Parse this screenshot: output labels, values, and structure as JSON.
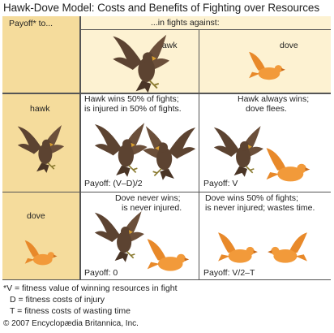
{
  "title": "Hawk-Dove Model: Costs and Benefits of Fighting over Resources",
  "header": {
    "row_header": "Payoff* to...",
    "col_header": "...in fights against:",
    "col_hawk": "hawk",
    "col_dove": "dove"
  },
  "rows": [
    {
      "label": "hawk",
      "cells": [
        {
          "desc": [
            "Hawk wins 50% of fights;",
            "is injured in 50% of fights."
          ],
          "payoff": "Payoff: (V–D)/2"
        },
        {
          "desc": [
            "Hawk always wins;",
            "dove flees."
          ],
          "payoff": "Payoff: V"
        }
      ]
    },
    {
      "label": "dove",
      "cells": [
        {
          "desc": [
            "Dove never wins;",
            "is never injured."
          ],
          "payoff": "Payoff: 0"
        },
        {
          "desc": [
            "Dove wins 50% of fights;",
            "is never injured; wastes time."
          ],
          "payoff": "Payoff: V/2–T"
        }
      ]
    }
  ],
  "footnotes": [
    "*V = fitness value of winning resources in fight",
    "D = fitness costs of injury",
    "T = fitness costs of wasting time"
  ],
  "copyright": "© 2007 Encyclopædia Britannica, Inc.",
  "colors": {
    "hawk": "#5c4331",
    "dove": "#f29a3a",
    "header_bg": "#f5dc9c",
    "cell_bg": "#fdf2d2"
  }
}
